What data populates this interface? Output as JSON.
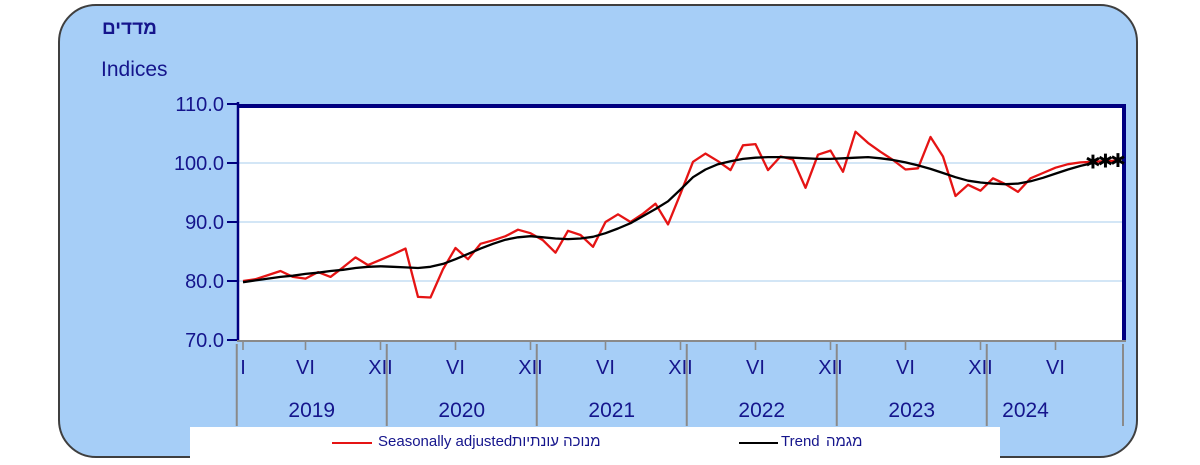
{
  "header": {
    "title_hebrew": "מדדים",
    "title_english": "Indices"
  },
  "legend": {
    "seasonally_adjusted_en": "Seasonally adjusted",
    "seasonally_adjusted_he": "מנוכה עונתיות",
    "trend_en": "Trend",
    "trend_he": "מגמה"
  },
  "colors": {
    "panel_background": "#A6CEF7",
    "plot_background": "#FFFFFF",
    "axis_navy": "#000080",
    "text_navy": "#15158C",
    "gridline_blue": "#B9D8F1",
    "seasonal_red": "#E51414",
    "trend_black": "#000000",
    "separator_gray": "#8A8A8A"
  },
  "chart_data": {
    "type": "line",
    "x_unit": "month",
    "x_start": "2019-01",
    "ylim": [
      70,
      110
    ],
    "y_ticks": [
      {
        "value": 110,
        "label": "110.0"
      },
      {
        "value": 100,
        "label": "100.0"
      },
      {
        "value": 90,
        "label": "90.0"
      },
      {
        "value": 80,
        "label": "80.0"
      },
      {
        "value": 70,
        "label": "70.0"
      }
    ],
    "x_tick_labels": [
      {
        "label": "I",
        "m": 0
      },
      {
        "label": "VI",
        "m": 5
      },
      {
        "label": "XII",
        "m": 11
      },
      {
        "label": "VI",
        "m": 17
      },
      {
        "label": "XII",
        "m": 23
      },
      {
        "label": "VI",
        "m": 29
      },
      {
        "label": "XII",
        "m": 35
      },
      {
        "label": "VI",
        "m": 41
      },
      {
        "label": "XII",
        "m": 47
      },
      {
        "label": "VI",
        "m": 53
      },
      {
        "label": "XII",
        "m": 59
      },
      {
        "label": "VI",
        "m": 65
      }
    ],
    "year_labels": [
      {
        "label": "2019",
        "m": 5.5
      },
      {
        "label": "2020",
        "m": 17.5
      },
      {
        "label": "2021",
        "m": 29.5
      },
      {
        "label": "2022",
        "m": 41.5
      },
      {
        "label": "2023",
        "m": 53.5
      },
      {
        "label": "2024",
        "m": 62.6
      }
    ],
    "year_separators_m": [
      -0.5,
      11.5,
      23.5,
      35.5,
      47.5,
      59.5,
      70.4
    ],
    "grid_values": [
      100,
      90,
      80
    ],
    "series": [
      {
        "name": "Seasonally adjusted",
        "color": "#E51414",
        "start_m": 0,
        "values": [
          80.0,
          80.3,
          81.0,
          81.7,
          80.7,
          80.4,
          81.5,
          80.7,
          82.3,
          84.0,
          82.7,
          83.6,
          84.5,
          85.5,
          77.3,
          77.2,
          82.0,
          85.6,
          83.7,
          86.3,
          86.9,
          87.6,
          88.7,
          88.1,
          86.9,
          84.8,
          88.5,
          87.8,
          85.8,
          90.0,
          91.3,
          90.0,
          91.4,
          93.1,
          89.6,
          94.8,
          100.2,
          101.6,
          100.3,
          98.8,
          103.0,
          103.2,
          98.8,
          101.1,
          100.6,
          95.8,
          101.4,
          102.1,
          98.5,
          105.3,
          103.4,
          101.9,
          100.5,
          98.9,
          99.1,
          104.4,
          101.1,
          94.4,
          96.3,
          95.3,
          97.4,
          96.4,
          95.1,
          97.4,
          98.3,
          99.2,
          99.8,
          100.1,
          100.2,
          100.3,
          100.4
        ]
      },
      {
        "name": "Trend",
        "color": "#000000",
        "start_m": 0,
        "values": [
          79.8,
          80.1,
          80.4,
          80.7,
          80.9,
          81.2,
          81.4,
          81.7,
          81.9,
          82.2,
          82.4,
          82.5,
          82.4,
          82.3,
          82.2,
          82.4,
          82.9,
          83.7,
          84.6,
          85.5,
          86.3,
          87.0,
          87.4,
          87.6,
          87.4,
          87.2,
          87.1,
          87.2,
          87.5,
          88.1,
          88.9,
          89.8,
          91.0,
          92.2,
          93.5,
          95.5,
          97.6,
          98.9,
          99.8,
          100.3,
          100.7,
          100.9,
          101.0,
          101.0,
          100.9,
          100.8,
          100.7,
          100.7,
          100.8,
          100.9,
          101.0,
          100.8,
          100.5,
          100.1,
          99.6,
          99.0,
          98.3,
          97.6,
          97.0,
          96.7,
          96.5,
          96.4,
          96.5,
          96.9,
          97.5,
          98.2,
          98.9,
          99.5,
          100.0
        ]
      }
    ],
    "markers": {
      "symbol": "✱",
      "series": "Seasonally adjusted",
      "x_months": [
        68,
        69,
        70
      ],
      "values": [
        100.2,
        100.3,
        100.4
      ]
    }
  }
}
